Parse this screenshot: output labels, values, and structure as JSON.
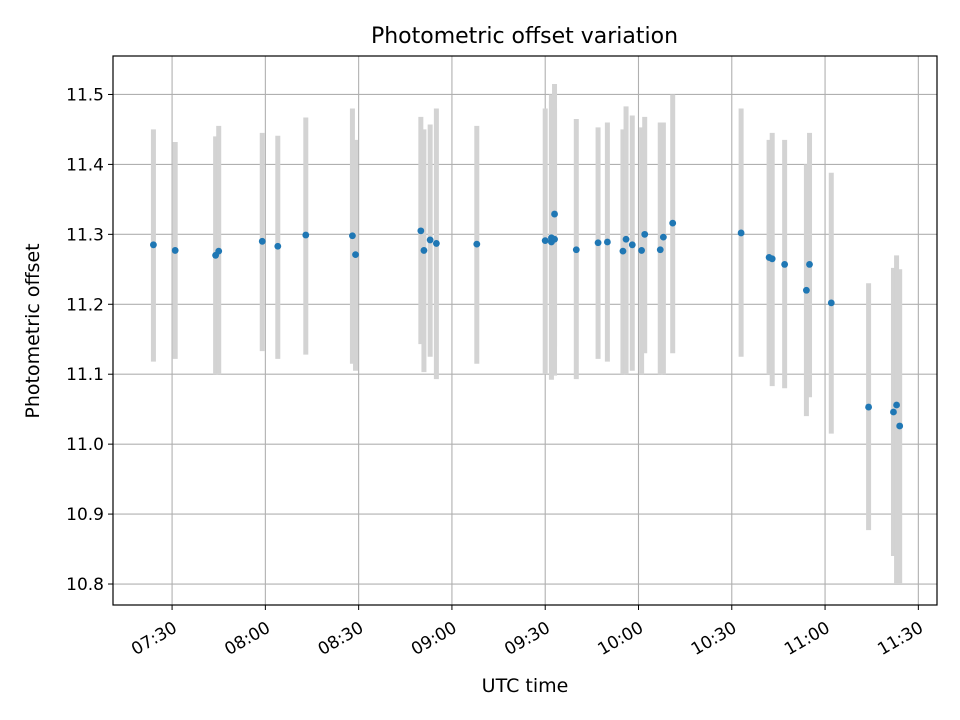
{
  "chart_data": {
    "type": "scatter",
    "title": "Photometric offset variation",
    "xlabel": "UTC time",
    "ylabel": "Photometric offset",
    "x_ticks": [
      "07:30",
      "08:00",
      "08:30",
      "09:00",
      "09:30",
      "10:00",
      "10:30",
      "11:00",
      "11:30"
    ],
    "y_ticks": [
      "10.8",
      "10.9",
      "11.0",
      "11.1",
      "11.2",
      "11.3",
      "11.4",
      "11.5"
    ],
    "xlim": [
      "07:11",
      "11:36"
    ],
    "ylim": [
      10.77,
      11.555
    ],
    "grid": true,
    "marker_color": "#1f77b4",
    "errorbar_color": "#d3d3d3",
    "series": [
      {
        "x": [
          "07:24",
          "07:31",
          "07:44",
          "07:45",
          "07:59",
          "08:04",
          "08:13",
          "08:28",
          "08:29",
          "08:50",
          "08:51",
          "08:53",
          "08:55",
          "09:08",
          "09:30",
          "09:32",
          "09:32",
          "09:33",
          "09:33",
          "09:40",
          "09:47",
          "09:50",
          "09:55",
          "09:56",
          "09:58",
          "10:01",
          "10:02",
          "10:07",
          "10:08",
          "10:11",
          "10:33",
          "10:42",
          "10:43",
          "10:47",
          "10:54",
          "10:55",
          "11:02",
          "11:14",
          "11:22",
          "11:23",
          "11:24"
        ],
        "y": [
          11.285,
          11.277,
          11.27,
          11.276,
          11.29,
          11.283,
          11.299,
          11.298,
          11.271,
          11.305,
          11.277,
          11.292,
          11.287,
          11.286,
          11.291,
          11.289,
          11.295,
          11.329,
          11.293,
          11.278,
          11.288,
          11.289,
          11.276,
          11.293,
          11.285,
          11.277,
          11.3,
          11.278,
          11.296,
          11.316,
          11.302,
          11.267,
          11.265,
          11.257,
          11.22,
          11.257,
          11.202,
          11.053,
          11.046,
          11.056,
          11.026
        ],
        "yerr_low": [
          11.118,
          11.122,
          11.1,
          11.1,
          11.133,
          11.122,
          11.128,
          11.115,
          11.105,
          11.143,
          11.103,
          11.125,
          11.093,
          11.115,
          11.1,
          11.092,
          11.105,
          11.14,
          11.098,
          11.093,
          11.122,
          11.118,
          11.1,
          11.1,
          11.105,
          11.1,
          11.13,
          11.1,
          11.1,
          11.13,
          11.125,
          11.1,
          11.083,
          11.08,
          11.04,
          11.067,
          11.015,
          10.877,
          10.84,
          10.8,
          10.8
        ],
        "yerr_high": [
          11.45,
          11.432,
          11.44,
          11.455,
          11.445,
          11.441,
          11.467,
          11.48,
          11.435,
          11.468,
          11.45,
          11.457,
          11.48,
          11.455,
          11.48,
          11.49,
          11.5,
          11.515,
          11.48,
          11.465,
          11.453,
          11.46,
          11.45,
          11.483,
          11.47,
          11.453,
          11.468,
          11.46,
          11.46,
          11.5,
          11.48,
          11.435,
          11.445,
          11.435,
          11.4,
          11.445,
          11.388,
          11.23,
          11.252,
          11.27,
          11.25
        ]
      }
    ]
  }
}
